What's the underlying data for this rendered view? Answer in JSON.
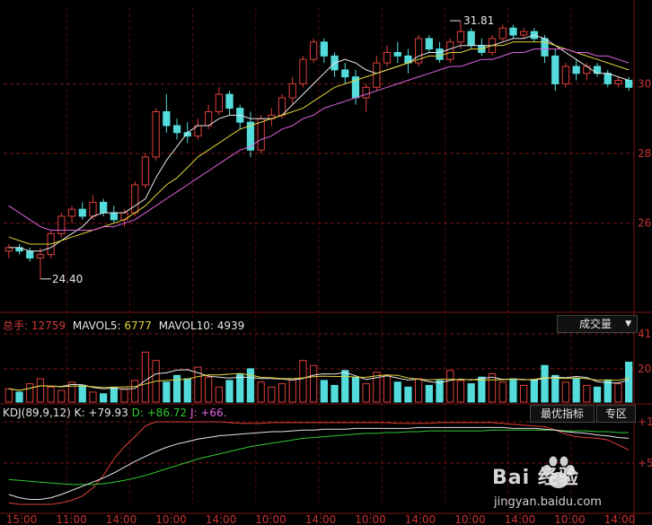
{
  "chart_data": {
    "type": "candlestick",
    "price": {
      "y_ticks": [
        26,
        28,
        30
      ],
      "ylim": [
        23.7,
        32.2
      ],
      "high_marker": "31.81",
      "low_marker": "24.40",
      "candles": [
        [
          25.2,
          25.4,
          25.0,
          25.3
        ],
        [
          25.3,
          25.4,
          25.1,
          25.2
        ],
        [
          25.2,
          25.3,
          24.9,
          25.0
        ],
        [
          25.0,
          25.3,
          24.4,
          25.1
        ],
        [
          25.1,
          25.8,
          25.0,
          25.7
        ],
        [
          25.7,
          26.3,
          25.6,
          26.2
        ],
        [
          26.2,
          26.5,
          26.0,
          26.4
        ],
        [
          26.4,
          26.6,
          26.1,
          26.2
        ],
        [
          26.2,
          26.8,
          26.1,
          26.6
        ],
        [
          26.6,
          26.7,
          26.2,
          26.3
        ],
        [
          26.3,
          26.5,
          26.0,
          26.1
        ],
        [
          26.1,
          26.4,
          25.9,
          26.3
        ],
        [
          26.3,
          27.2,
          26.2,
          27.1
        ],
        [
          27.1,
          28.0,
          27.0,
          27.9
        ],
        [
          27.9,
          29.3,
          27.8,
          29.2
        ],
        [
          29.2,
          29.7,
          28.6,
          28.8
        ],
        [
          28.8,
          29.0,
          28.4,
          28.6
        ],
        [
          28.6,
          28.9,
          28.3,
          28.5
        ],
        [
          28.5,
          29.0,
          28.4,
          28.8
        ],
        [
          28.8,
          29.4,
          28.7,
          29.2
        ],
        [
          29.2,
          29.9,
          29.1,
          29.7
        ],
        [
          29.7,
          29.8,
          29.1,
          29.3
        ],
        [
          29.3,
          29.4,
          28.7,
          28.9
        ],
        [
          28.9,
          29.2,
          27.9,
          28.1
        ],
        [
          28.1,
          29.1,
          28.0,
          29.0
        ],
        [
          29.0,
          29.3,
          28.8,
          29.1
        ],
        [
          29.1,
          29.7,
          29.0,
          29.6
        ],
        [
          29.6,
          30.2,
          29.4,
          30.0
        ],
        [
          30.0,
          30.8,
          29.9,
          30.7
        ],
        [
          30.7,
          31.3,
          30.6,
          31.2
        ],
        [
          31.2,
          31.3,
          30.6,
          30.8
        ],
        [
          30.8,
          30.9,
          30.2,
          30.4
        ],
        [
          30.4,
          30.6,
          30.0,
          30.2
        ],
        [
          30.2,
          30.4,
          29.4,
          29.6
        ],
        [
          29.6,
          30.0,
          29.2,
          29.9
        ],
        [
          29.9,
          30.8,
          29.8,
          30.6
        ],
        [
          30.6,
          31.1,
          30.5,
          30.9
        ],
        [
          30.9,
          31.2,
          30.6,
          30.8
        ],
        [
          30.8,
          31.0,
          30.3,
          30.6
        ],
        [
          30.6,
          31.4,
          30.5,
          31.3
        ],
        [
          31.3,
          31.4,
          30.9,
          31.0
        ],
        [
          31.0,
          31.2,
          30.6,
          30.7
        ],
        [
          30.7,
          31.3,
          30.6,
          31.2
        ],
        [
          31.2,
          31.81,
          31.0,
          31.5
        ],
        [
          31.5,
          31.6,
          31.0,
          31.1
        ],
        [
          31.1,
          31.3,
          30.8,
          30.9
        ],
        [
          30.9,
          31.4,
          30.8,
          31.3
        ],
        [
          31.3,
          31.7,
          31.2,
          31.6
        ],
        [
          31.6,
          31.7,
          31.3,
          31.4
        ],
        [
          31.4,
          31.6,
          31.3,
          31.5
        ],
        [
          31.5,
          31.6,
          31.2,
          31.3
        ],
        [
          31.3,
          31.4,
          30.6,
          30.8
        ],
        [
          30.8,
          31.0,
          29.8,
          30.0
        ],
        [
          30.0,
          30.6,
          29.9,
          30.5
        ],
        [
          30.5,
          30.7,
          30.1,
          30.3
        ],
        [
          30.3,
          30.6,
          30.1,
          30.5
        ],
        [
          30.5,
          30.6,
          30.2,
          30.3
        ],
        [
          30.3,
          30.4,
          29.9,
          30.0
        ],
        [
          30.0,
          30.2,
          29.9,
          30.1
        ],
        [
          30.1,
          30.2,
          29.8,
          29.9
        ]
      ],
      "ma_lines": [
        {
          "color": "#e6e6e6",
          "values": [
            25.3,
            25.3,
            25.2,
            25.2,
            25.3,
            25.5,
            25.7,
            25.9,
            26.2,
            26.3,
            26.3,
            26.3,
            26.5,
            26.7,
            27.3,
            27.8,
            28.2,
            28.6,
            28.8,
            28.8,
            29.0,
            29.1,
            29.1,
            29.0,
            29.0,
            29.0,
            29.1,
            29.4,
            29.7,
            30.0,
            30.3,
            30.6,
            30.7,
            30.6,
            30.4,
            30.3,
            30.4,
            30.5,
            30.6,
            30.8,
            30.9,
            30.9,
            31.0,
            31.1,
            31.1,
            31.1,
            31.1,
            31.2,
            31.3,
            31.3,
            31.4,
            31.3,
            31.1,
            30.9,
            30.7,
            30.5,
            30.3,
            30.3,
            30.2,
            30.1
          ]
        },
        {
          "color": "#e0d23a",
          "values": [
            25.6,
            25.5,
            25.4,
            25.4,
            25.4,
            25.5,
            25.6,
            25.7,
            25.8,
            25.9,
            26.0,
            26.1,
            26.3,
            26.5,
            26.8,
            27.1,
            27.3,
            27.6,
            27.9,
            28.1,
            28.3,
            28.5,
            28.7,
            28.8,
            28.9,
            29.0,
            29.1,
            29.2,
            29.3,
            29.5,
            29.7,
            29.9,
            30.0,
            30.1,
            30.2,
            30.3,
            30.4,
            30.5,
            30.6,
            30.7,
            30.8,
            30.8,
            30.9,
            30.9,
            31.0,
            31.0,
            31.1,
            31.1,
            31.2,
            31.2,
            31.2,
            31.2,
            31.1,
            31.0,
            30.9,
            30.8,
            30.7,
            30.6,
            30.5,
            30.4
          ]
        },
        {
          "color": "#e060e0",
          "values": [
            26.5,
            26.3,
            26.1,
            25.9,
            25.8,
            25.8,
            25.8,
            25.8,
            25.8,
            25.9,
            25.9,
            26.0,
            26.1,
            26.3,
            26.5,
            26.7,
            26.9,
            27.1,
            27.3,
            27.5,
            27.7,
            27.9,
            28.1,
            28.2,
            28.4,
            28.5,
            28.7,
            28.8,
            29.0,
            29.1,
            29.3,
            29.4,
            29.5,
            29.6,
            29.7,
            29.8,
            29.9,
            30.0,
            30.1,
            30.2,
            30.3,
            30.4,
            30.5,
            30.5,
            30.6,
            30.7,
            30.7,
            30.8,
            30.9,
            30.9,
            31.0,
            31.0,
            31.0,
            31.0,
            30.9,
            30.9,
            30.8,
            30.8,
            30.7,
            30.6
          ]
        }
      ]
    },
    "volume": {
      "y_ticks": [
        "41",
        "20"
      ],
      "values": [
        8,
        6,
        11,
        14,
        9,
        7,
        12,
        10,
        6,
        5,
        9,
        8,
        13,
        30,
        25,
        12,
        16,
        14,
        21,
        15,
        9,
        13,
        17,
        20,
        12,
        9,
        11,
        14,
        25,
        22,
        13,
        10,
        19,
        15,
        11,
        18,
        16,
        12,
        9,
        14,
        10,
        13,
        19,
        13,
        11,
        15,
        17,
        12,
        14,
        10,
        13,
        22,
        16,
        12,
        14,
        10,
        9,
        13,
        11,
        24
      ],
      "up": [
        1,
        0,
        1,
        1,
        1,
        1,
        1,
        0,
        1,
        0,
        0,
        1,
        1,
        1,
        1,
        0,
        0,
        0,
        1,
        1,
        1,
        0,
        0,
        0,
        1,
        1,
        1,
        1,
        1,
        1,
        0,
        0,
        0,
        0,
        1,
        1,
        1,
        0,
        0,
        1,
        0,
        0,
        1,
        1,
        0,
        0,
        1,
        1,
        0,
        1,
        0,
        0,
        0,
        1,
        0,
        1,
        0,
        0,
        1,
        0
      ]
    },
    "kdj": {
      "y_ticks": [
        "+1",
        "+5"
      ],
      "k": [
        12,
        8,
        6,
        6,
        8,
        12,
        17,
        22,
        27,
        32,
        38,
        45,
        52,
        58,
        64,
        69,
        73,
        76,
        79,
        81,
        83,
        84,
        85,
        86,
        87,
        88,
        88,
        89,
        90,
        90,
        91,
        91,
        91,
        92,
        92,
        92,
        92,
        92,
        92,
        93,
        93,
        93,
        93,
        93,
        93,
        93,
        93,
        93,
        92,
        92,
        92,
        91,
        90,
        88,
        87,
        86,
        84,
        83,
        81,
        80
      ],
      "d": [
        30,
        29,
        28,
        27,
        26,
        25,
        24,
        24,
        24,
        25,
        27,
        29,
        32,
        35,
        39,
        43,
        47,
        51,
        55,
        58,
        61,
        64,
        67,
        70,
        72,
        74,
        76,
        78,
        80,
        81,
        82,
        83,
        84,
        85,
        86,
        86,
        87,
        87,
        88,
        88,
        89,
        89,
        89,
        89,
        89,
        89,
        90,
        90,
        90,
        90,
        90,
        90,
        90,
        89,
        89,
        89,
        88,
        88,
        87,
        87
      ],
      "j": [
        2,
        0,
        0,
        0,
        0,
        2,
        5,
        10,
        20,
        35,
        55,
        70,
        82,
        95,
        100,
        100,
        100,
        100,
        100,
        100,
        100,
        99,
        98,
        98,
        98,
        99,
        99,
        99,
        99,
        99,
        99,
        99,
        99,
        99,
        99,
        99,
        99,
        98,
        98,
        98,
        98,
        99,
        99,
        99,
        99,
        99,
        99,
        98,
        97,
        96,
        95,
        94,
        90,
        85,
        82,
        81,
        80,
        78,
        72,
        66
      ]
    },
    "x_tick_labels": [
      "15:00",
      "11:00",
      "14:00",
      "10:00",
      "14:00",
      "10:00",
      "14:00",
      "10:00",
      "14:00",
      "10:00",
      "14:00",
      "10:00",
      "14:00"
    ]
  },
  "volume_header": {
    "total_label": "总手:",
    "total_value": "12759",
    "mavol5_label": "MAVOL5:",
    "mavol5_value": "6777",
    "mavol10_label": "MAVOL10:",
    "mavol10_value": "4939",
    "indicator_select": "成交量"
  },
  "kdj_header": {
    "name": "KDJ(89,9,12)",
    "k_text": "K: +79.93",
    "d_text": "D: +86.72",
    "j_text": "J: +66."
  },
  "buttons": {
    "best_indicator": "最优指标",
    "special_zone": "专区"
  },
  "watermark": {
    "brand": "Bai 经验",
    "site": "jingyan.baidu.com"
  },
  "colors": {
    "up": "#e0403c",
    "down": "#54dcdc",
    "grid": "#7a1414",
    "axis_text": "#c83232",
    "k_line": "#e6e6e6",
    "d_line": "#32c832",
    "j_line": "#e0403c"
  }
}
